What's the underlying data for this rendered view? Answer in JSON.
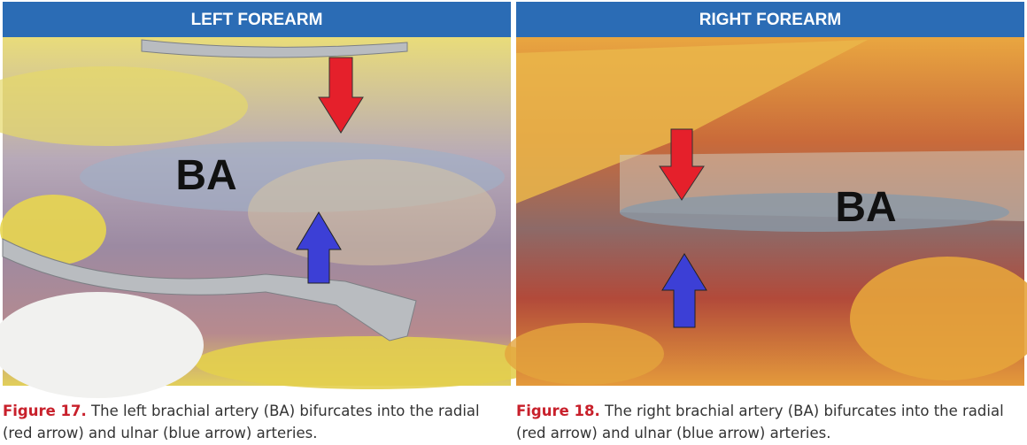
{
  "figures": [
    {
      "header": "LEFT FOREARM",
      "photo_label": "BA",
      "caption": {
        "label": "Figure 17.",
        "lines": [
          "The left brachial artery (BA) bifurcates into the radial",
          "(red arrow) and ulnar (blue arrow) arteries."
        ]
      }
    },
    {
      "header": "RIGHT FOREARM",
      "photo_label": "BA",
      "caption": {
        "label": "Figure 18.",
        "lines": [
          "The right brachial artery (BA) bifurcates into the radial",
          "(red arrow) and ulnar (blue arrow) arteries."
        ]
      }
    }
  ]
}
